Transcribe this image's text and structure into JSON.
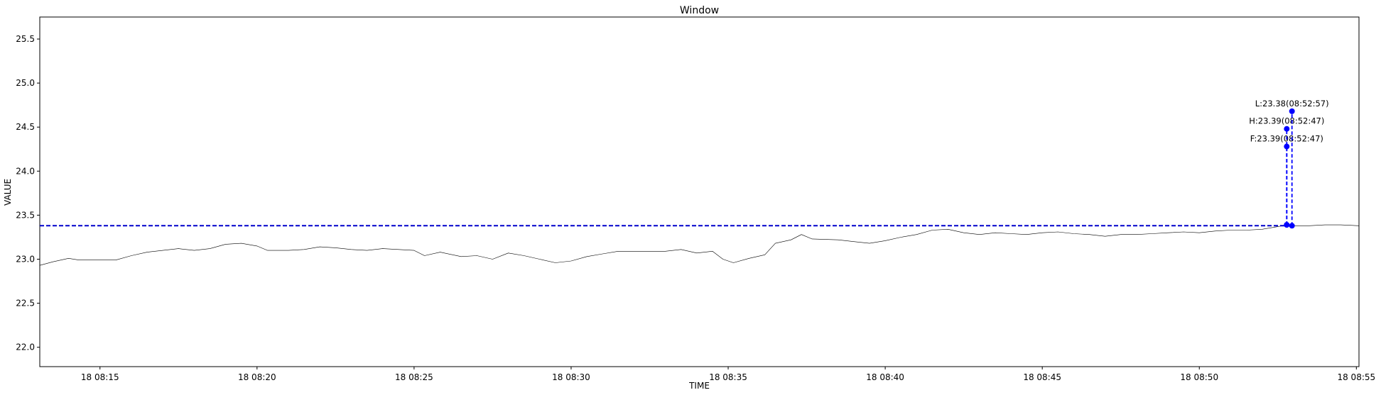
{
  "chart_data": {
    "type": "line",
    "title": "Window",
    "xlabel": "TIME",
    "ylabel": "VALUE",
    "xlim": [
      "08:13:05",
      "08:55:05"
    ],
    "ylim": [
      21.78,
      25.75
    ],
    "yticks": [
      22.0,
      22.5,
      23.0,
      23.5,
      24.0,
      24.5,
      25.0,
      25.5
    ],
    "ytick_labels": [
      "22.0",
      "22.5",
      "23.0",
      "23.5",
      "24.0",
      "24.5",
      "25.0",
      "25.5"
    ],
    "xticks": [
      "08:15:00",
      "08:20:00",
      "08:25:00",
      "08:30:00",
      "08:35:00",
      "08:40:00",
      "08:45:00",
      "08:50:00",
      "08:55:00"
    ],
    "xtick_labels": [
      "18 08:15",
      "18 08:20",
      "18 08:25",
      "18 08:30",
      "18 08:35",
      "18 08:40",
      "18 08:45",
      "18 08:50",
      "18 08:55"
    ],
    "grid": false,
    "series": [
      {
        "color": "#000000",
        "line_width": 0.6,
        "points": [
          [
            "08:13:05",
            22.93
          ],
          [
            "08:13:30",
            22.97
          ],
          [
            "08:14:00",
            23.01
          ],
          [
            "08:14:20",
            22.99
          ],
          [
            "08:15:00",
            22.99
          ],
          [
            "08:15:30",
            22.99
          ],
          [
            "08:16:00",
            23.04
          ],
          [
            "08:16:30",
            23.08
          ],
          [
            "08:17:00",
            23.1
          ],
          [
            "08:17:30",
            23.12
          ],
          [
            "08:18:00",
            23.1
          ],
          [
            "08:18:30",
            23.12
          ],
          [
            "08:19:00",
            23.17
          ],
          [
            "08:19:30",
            23.18
          ],
          [
            "08:20:00",
            23.15
          ],
          [
            "08:20:20",
            23.1
          ],
          [
            "08:21:00",
            23.1
          ],
          [
            "08:21:30",
            23.11
          ],
          [
            "08:22:00",
            23.14
          ],
          [
            "08:22:30",
            23.13
          ],
          [
            "08:23:00",
            23.11
          ],
          [
            "08:23:30",
            23.1
          ],
          [
            "08:24:00",
            23.12
          ],
          [
            "08:24:30",
            23.11
          ],
          [
            "08:25:00",
            23.1
          ],
          [
            "08:25:20",
            23.04
          ],
          [
            "08:25:50",
            23.08
          ],
          [
            "08:26:30",
            23.03
          ],
          [
            "08:27:00",
            23.04
          ],
          [
            "08:27:30",
            23.0
          ],
          [
            "08:28:00",
            23.07
          ],
          [
            "08:28:30",
            23.04
          ],
          [
            "08:29:00",
            23.0
          ],
          [
            "08:29:30",
            22.96
          ],
          [
            "08:30:00",
            22.98
          ],
          [
            "08:30:30",
            23.03
          ],
          [
            "08:31:00",
            23.06
          ],
          [
            "08:31:30",
            23.09
          ],
          [
            "08:32:00",
            23.09
          ],
          [
            "08:33:00",
            23.09
          ],
          [
            "08:33:30",
            23.11
          ],
          [
            "08:34:00",
            23.07
          ],
          [
            "08:34:30",
            23.09
          ],
          [
            "08:34:50",
            23.0
          ],
          [
            "08:35:10",
            22.96
          ],
          [
            "08:35:40",
            23.01
          ],
          [
            "08:36:10",
            23.05
          ],
          [
            "08:36:30",
            23.18
          ],
          [
            "08:37:00",
            23.22
          ],
          [
            "08:37:20",
            23.28
          ],
          [
            "08:37:40",
            23.23
          ],
          [
            "08:38:30",
            23.22
          ],
          [
            "08:39:00",
            23.2
          ],
          [
            "08:39:30",
            23.18
          ],
          [
            "08:40:00",
            23.21
          ],
          [
            "08:40:30",
            23.25
          ],
          [
            "08:41:00",
            23.28
          ],
          [
            "08:41:30",
            23.33
          ],
          [
            "08:42:00",
            23.34
          ],
          [
            "08:42:30",
            23.3
          ],
          [
            "08:43:00",
            23.28
          ],
          [
            "08:43:30",
            23.3
          ],
          [
            "08:44:00",
            23.29
          ],
          [
            "08:44:30",
            23.28
          ],
          [
            "08:45:00",
            23.3
          ],
          [
            "08:45:30",
            23.31
          ],
          [
            "08:46:00",
            23.29
          ],
          [
            "08:46:30",
            23.28
          ],
          [
            "08:47:00",
            23.26
          ],
          [
            "08:47:30",
            23.28
          ],
          [
            "08:48:00",
            23.28
          ],
          [
            "08:48:30",
            23.29
          ],
          [
            "08:49:00",
            23.3
          ],
          [
            "08:49:30",
            23.31
          ],
          [
            "08:50:00",
            23.3
          ],
          [
            "08:50:30",
            23.32
          ],
          [
            "08:51:00",
            23.33
          ],
          [
            "08:51:30",
            23.33
          ],
          [
            "08:52:00",
            23.34
          ],
          [
            "08:52:30",
            23.37
          ],
          [
            "08:52:47",
            23.39
          ],
          [
            "08:53:00",
            23.38
          ],
          [
            "08:53:30",
            23.38
          ],
          [
            "08:54:00",
            23.39
          ],
          [
            "08:54:30",
            23.39
          ],
          [
            "08:55:05",
            23.38
          ]
        ]
      }
    ],
    "reference_line": {
      "y": 23.38,
      "color": "#0000cc",
      "style": "dashed",
      "end": "08:53:02"
    },
    "markers": [
      {
        "label": "F:23.39(08:52:47)",
        "time": "08:52:47",
        "base_value": 23.39,
        "marker_value": 24.28,
        "color": "#0000ff"
      },
      {
        "label": "H:23.39(08:52:47)",
        "time": "08:52:47",
        "base_value": 23.39,
        "marker_value": 24.48,
        "color": "#0000ff"
      },
      {
        "label": "L:23.38(08:52:57)",
        "time": "08:52:57",
        "base_value": 23.38,
        "marker_value": 24.68,
        "color": "#0000ff"
      }
    ]
  }
}
